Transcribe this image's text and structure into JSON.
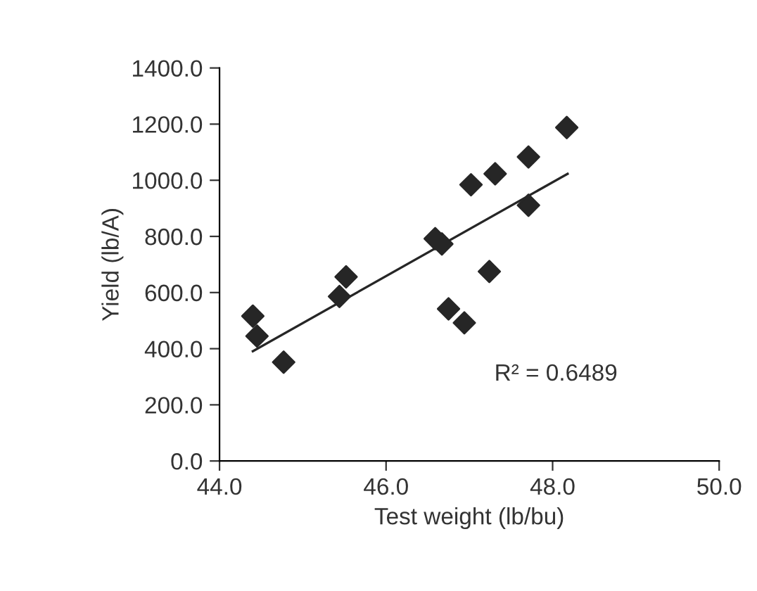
{
  "chart_data": {
    "type": "scatter",
    "xlabel": "Test weight (lb/bu)",
    "ylabel": "Yield (lb/A)",
    "xlim": [
      44.0,
      50.0
    ],
    "xticks": [
      {
        "value": 44,
        "label": "44.0"
      },
      {
        "value": 46,
        "label": "46.0"
      },
      {
        "value": 48,
        "label": "48.0"
      },
      {
        "value": 50,
        "label": "50.0"
      }
    ],
    "ylim": [
      0,
      1400
    ],
    "yticks": [
      {
        "value": 0,
        "label": "0.0"
      },
      {
        "value": 200,
        "label": "200.0"
      },
      {
        "value": 400,
        "label": "400.0"
      },
      {
        "value": 600,
        "label": "600.0"
      },
      {
        "value": 800,
        "label": "800.0"
      },
      {
        "value": 1000,
        "label": "1000.0"
      },
      {
        "value": 1200,
        "label": "1200.0"
      },
      {
        "value": 1400,
        "label": "1400.0"
      }
    ],
    "grid": false,
    "legend": false,
    "series": [
      {
        "marker": "diamond",
        "color": "#262626",
        "x": [
          44.4,
          44.45,
          44.77,
          45.44,
          45.52,
          46.59,
          46.67,
          46.75,
          46.94,
          47.02,
          47.24,
          47.31,
          47.71,
          47.71,
          48.17
        ],
        "values": [
          516,
          445,
          352,
          586,
          656,
          792,
          773,
          542,
          492,
          984,
          675,
          1023,
          911,
          1083,
          1188
        ]
      },
      {
        "type": "line",
        "marker": "none",
        "color": "#262626",
        "x": [
          44.4,
          48.18
        ],
        "values": [
          391,
          1023
        ]
      }
    ],
    "annotations": [
      "R² = 0.6489"
    ]
  }
}
